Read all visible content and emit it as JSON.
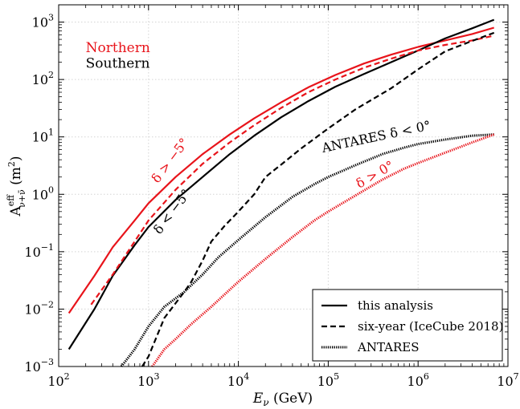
{
  "chart_data": {
    "type": "line",
    "xscale": "log",
    "yscale": "log",
    "xlim": [
      100,
      10000000
    ],
    "ylim": [
      0.001,
      2000
    ],
    "grid": true,
    "xlabel_main": "E",
    "xlabel_sub": "ν",
    "xlabel_unit": " (GeV)",
    "ylabel_main": "A",
    "ylabel_sup": "eff",
    "ylabel_sub": "ν+ν̄",
    "ylabel_unit": " (m",
    "ylabel_unit_sup": "2",
    "ylabel_close": ")",
    "xticks": [
      {
        "value": 100,
        "base": "10",
        "exp": "2"
      },
      {
        "value": 1000,
        "base": "10",
        "exp": "3"
      },
      {
        "value": 10000,
        "base": "10",
        "exp": "4"
      },
      {
        "value": 100000,
        "base": "10",
        "exp": "5"
      },
      {
        "value": 1000000,
        "base": "10",
        "exp": "6"
      },
      {
        "value": 10000000,
        "base": "10",
        "exp": "7"
      }
    ],
    "yticks": [
      {
        "value": 0.001,
        "base": "10",
        "exp": "−3"
      },
      {
        "value": 0.01,
        "base": "10",
        "exp": "−2"
      },
      {
        "value": 0.1,
        "base": "10",
        "exp": "−1"
      },
      {
        "value": 1,
        "base": "10",
        "exp": "0"
      },
      {
        "value": 10,
        "base": "10",
        "exp": "1"
      },
      {
        "value": 100,
        "base": "10",
        "exp": "2"
      },
      {
        "value": 1000,
        "base": "10",
        "exp": "3"
      }
    ],
    "colors": {
      "northern": "#e8141b",
      "southern": "#000000"
    },
    "series": [
      {
        "hemisphere": "northern",
        "style": "solid",
        "x": [
          130,
          250,
          400,
          700,
          1000,
          2000,
          4000,
          8000,
          15000,
          30000,
          60000,
          120000,
          250000,
          500000,
          1000000,
          2000000,
          4000000,
          7000000
        ],
        "y": [
          0.0085,
          0.038,
          0.12,
          0.35,
          0.7,
          2.0,
          5.0,
          11,
          21,
          40,
          73,
          120,
          190,
          270,
          370,
          480,
          620,
          800
        ]
      },
      {
        "hemisphere": "southern",
        "style": "solid",
        "x": [
          130,
          250,
          400,
          700,
          1000,
          2000,
          4000,
          8000,
          15000,
          30000,
          60000,
          120000,
          250000,
          500000,
          1000000,
          2000000,
          4000000,
          7000000
        ],
        "y": [
          0.002,
          0.01,
          0.038,
          0.13,
          0.27,
          0.8,
          2.0,
          5.0,
          10.5,
          22,
          42,
          75,
          125,
          200,
          320,
          520,
          780,
          1100
        ]
      },
      {
        "hemisphere": "northern",
        "style": "dashed",
        "x": [
          230,
          400,
          700,
          1000,
          2000,
          4000,
          8000,
          15000,
          30000,
          60000,
          120000,
          250000,
          500000,
          1000000,
          2000000,
          4000000,
          7000000
        ],
        "y": [
          0.012,
          0.04,
          0.15,
          0.35,
          1.2,
          3.4,
          8.0,
          16,
          32,
          60,
          100,
          160,
          230,
          320,
          400,
          480,
          580
        ]
      },
      {
        "hemisphere": "southern",
        "style": "dashed",
        "x": [
          850,
          1000,
          1500,
          2500,
          3000,
          4000,
          5000,
          7000,
          10000,
          15000,
          20000,
          30000,
          50000,
          100000,
          200000,
          500000,
          1000000,
          2000000,
          4000000,
          7000000
        ],
        "y": [
          0.001,
          0.0015,
          0.007,
          0.02,
          0.03,
          0.07,
          0.15,
          0.28,
          0.5,
          1.0,
          2.0,
          3.3,
          6.3,
          14,
          30,
          70,
          150,
          310,
          470,
          650
        ]
      },
      {
        "hemisphere": "southern",
        "style": "dotted",
        "x": [
          500,
          700,
          1000,
          1500,
          2500,
          4000,
          6000,
          10000,
          20000,
          40000,
          70000,
          100000,
          200000,
          400000,
          700000,
          1000000,
          2000000,
          4000000,
          7000000
        ],
        "y": [
          0.001,
          0.002,
          0.005,
          0.011,
          0.02,
          0.04,
          0.08,
          0.16,
          0.4,
          0.9,
          1.5,
          2.0,
          3.2,
          5.0,
          6.5,
          7.5,
          9.0,
          10.5,
          11.0
        ]
      },
      {
        "hemisphere": "northern",
        "style": "dotted",
        "x": [
          1100,
          1500,
          2000,
          3000,
          5000,
          10000,
          20000,
          40000,
          70000,
          100000,
          200000,
          400000,
          700000,
          1000000,
          2000000,
          4000000,
          7000000
        ],
        "y": [
          0.001,
          0.002,
          0.003,
          0.0055,
          0.011,
          0.03,
          0.075,
          0.18,
          0.35,
          0.5,
          0.95,
          1.8,
          2.8,
          3.5,
          5.3,
          8.0,
          11.0
        ]
      }
    ],
    "region_labels": [
      {
        "text": "Northern",
        "hemisphere": "northern",
        "x": 200,
        "y": 300
      },
      {
        "text": "Southern",
        "hemisphere": "southern",
        "x": 200,
        "y": 160
      }
    ],
    "annotations": [
      {
        "text": "δ > −5°",
        "hemisphere": "northern",
        "x": 1900,
        "y": 3.5,
        "rotation": -53
      },
      {
        "text": "δ < −5°",
        "hemisphere": "southern",
        "x": 2000,
        "y": 0.45,
        "rotation": -53
      },
      {
        "text": "ANTARES δ < 0°",
        "hemisphere": "southern",
        "x": 350000,
        "y": 8.5,
        "rotation": -12
      },
      {
        "text": "δ > 0°",
        "hemisphere": "northern",
        "x": 350000,
        "y": 1.9,
        "rotation": -30
      }
    ],
    "legend": {
      "position": "lower-right",
      "entries": [
        {
          "label": "this analysis",
          "style": "solid"
        },
        {
          "label": "six-year (IceCube 2018)",
          "style": "dashed"
        },
        {
          "label": "ANTARES",
          "style": "dotted"
        }
      ]
    }
  }
}
